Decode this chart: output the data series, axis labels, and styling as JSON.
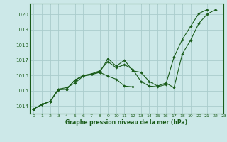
{
  "title": "Graphe pression niveau de la mer (hPa)",
  "bg_color": "#cce8e8",
  "grid_color": "#aacccc",
  "line_color": "#1a5c1a",
  "marker_color": "#1a5c1a",
  "xlim": [
    -0.5,
    23
  ],
  "ylim": [
    1013.5,
    1020.7
  ],
  "xticks": [
    0,
    1,
    2,
    3,
    4,
    5,
    6,
    7,
    8,
    9,
    10,
    11,
    12,
    13,
    14,
    15,
    16,
    17,
    18,
    19,
    20,
    21,
    22,
    23
  ],
  "yticks": [
    1014,
    1015,
    1016,
    1017,
    1018,
    1019,
    1020
  ],
  "series": [
    [
      1013.8,
      1014.1,
      1014.3,
      1015.1,
      1015.2,
      1015.5,
      1015.95,
      1016.1,
      1016.2,
      1017.1,
      1016.6,
      1017.0,
      1016.3,
      1016.2,
      1015.6,
      1015.3,
      1015.5,
      1015.2,
      1017.4,
      1018.3,
      1019.4,
      1020.0,
      1020.3,
      null
    ],
    [
      1013.8,
      1014.1,
      1014.3,
      1015.1,
      1015.1,
      1015.7,
      1016.0,
      1016.1,
      1016.3,
      1016.9,
      1016.5,
      1016.7,
      1016.4,
      1015.6,
      1015.3,
      1015.25,
      1015.4,
      1017.2,
      1018.35,
      1019.2,
      1020.05,
      1020.3,
      null,
      null
    ],
    [
      1013.8,
      1014.1,
      1014.3,
      1015.05,
      1015.1,
      1015.7,
      1015.95,
      1016.05,
      1016.2,
      1015.95,
      1015.75,
      1015.3,
      1015.25,
      null,
      null,
      null,
      null,
      null,
      null,
      null,
      null,
      null,
      null,
      null
    ]
  ]
}
